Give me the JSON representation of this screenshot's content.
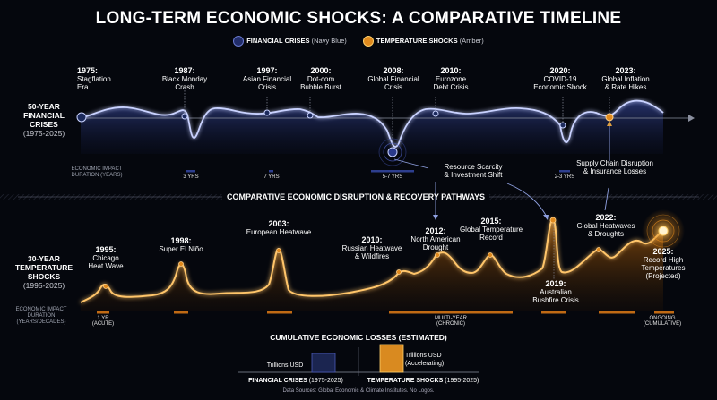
{
  "title": "LONG-TERM ECONOMIC SHOCKS: A COMPARATIVE TIMELINE",
  "legend": {
    "financial": {
      "label": "FINANCIAL CRISES",
      "sub": "(Navy Blue)",
      "color": "#2a3a7a"
    },
    "temperature": {
      "label": "TEMPERATURE SHOCKS",
      "sub": "(Amber)",
      "color": "#e08a1e"
    }
  },
  "financial_row": {
    "label_line1": "50-YEAR",
    "label_line2": "FINANCIAL",
    "label_line3": "CRISES",
    "range": "(1975-2025)",
    "duration_label_1": "ECONOMIC IMPACT",
    "duration_label_2": "DURATION (YEARS)",
    "events": [
      {
        "year": "1975:",
        "l1": "Stagflation",
        "l2": "Era"
      },
      {
        "year": "1987:",
        "l1": "Black Monday",
        "l2": "Crash"
      },
      {
        "year": "1997:",
        "l1": "Asian Financial",
        "l2": "Crisis"
      },
      {
        "year": "2000:",
        "l1": "Dot-com",
        "l2": "Bubble Burst"
      },
      {
        "year": "2008:",
        "l1": "Global Financial",
        "l2": "Crisis"
      },
      {
        "year": "2010:",
        "l1": "Eurozone",
        "l2": "Debt Crisis"
      },
      {
        "year": "2020:",
        "l1": "COVID-19",
        "l2": "Economic Shock"
      },
      {
        "year": "2023:",
        "l1": "Global Inflation",
        "l2": "& Rate Hikes"
      }
    ],
    "durations": [
      "3 YRS",
      "7 YRS",
      "5-7 YRS",
      "2-3 YRS"
    ]
  },
  "connectors": {
    "resource_1": "Resource Scarcity",
    "resource_2": "& Investment Shift",
    "supply_1": "Supply Chain Disruption",
    "supply_2": "& Insurance Losses"
  },
  "mid_title": "COMPARATIVE ECONOMIC DISRUPTION & RECOVERY PATHWAYS",
  "temperature_row": {
    "label_line1": "30-YEAR",
    "label_line2": "TEMPERATURE",
    "label_line3": "SHOCKS",
    "range": "(1995-2025)",
    "duration_label_1": "ECONOMIC IMPACT",
    "duration_label_2": "DURATION",
    "duration_label_3": "(YEARS/DECADES)",
    "events": [
      {
        "year": "1995:",
        "l1": "Chicago",
        "l2": "Heat Wave"
      },
      {
        "year": "1998:",
        "l1": "Super El Niño",
        "l2": ""
      },
      {
        "year": "2003:",
        "l1": "European Heatwave",
        "l2": ""
      },
      {
        "year": "2010:",
        "l1": "Russian Heatwave",
        "l2": "& Wildfires"
      },
      {
        "year": "2012:",
        "l1": "North American",
        "l2": "Drought"
      },
      {
        "year": "2015:",
        "l1": "Global Temperature",
        "l2": "Record"
      },
      {
        "year": "2019:",
        "l1": "Australian",
        "l2": "Bushfire Crisis"
      },
      {
        "year": "2022:",
        "l1": "Global Heatwaves",
        "l2": "& Droughts"
      },
      {
        "year": "2025:",
        "l1": "Record High",
        "l2": "Temperatures",
        "l3": "(Projected)"
      }
    ],
    "durations": {
      "acute_1": "1 YR",
      "acute_2": "(ACUTE)",
      "multi_1": "MULTI-YEAR",
      "multi_2": "(CHRONIC)",
      "ongoing_1": "ONGOING",
      "ongoing_2": "(CUMULATIVE)"
    }
  },
  "losses": {
    "title": "CUMULATIVE ECONOMIC LOSSES (ESTIMATED)",
    "fin_unit": "Trillions USD",
    "temp_unit_1": "Trillions USD",
    "temp_unit_2": "(Accelerating)",
    "fin_label": "FINANCIAL CRISES",
    "fin_range": "(1975-2025)",
    "temp_label": "TEMPERATURE SHOCKS",
    "temp_range": "(1995-2025)"
  },
  "footer": "Data Sources: Global Economic & Climate Institutes. No Logos."
}
